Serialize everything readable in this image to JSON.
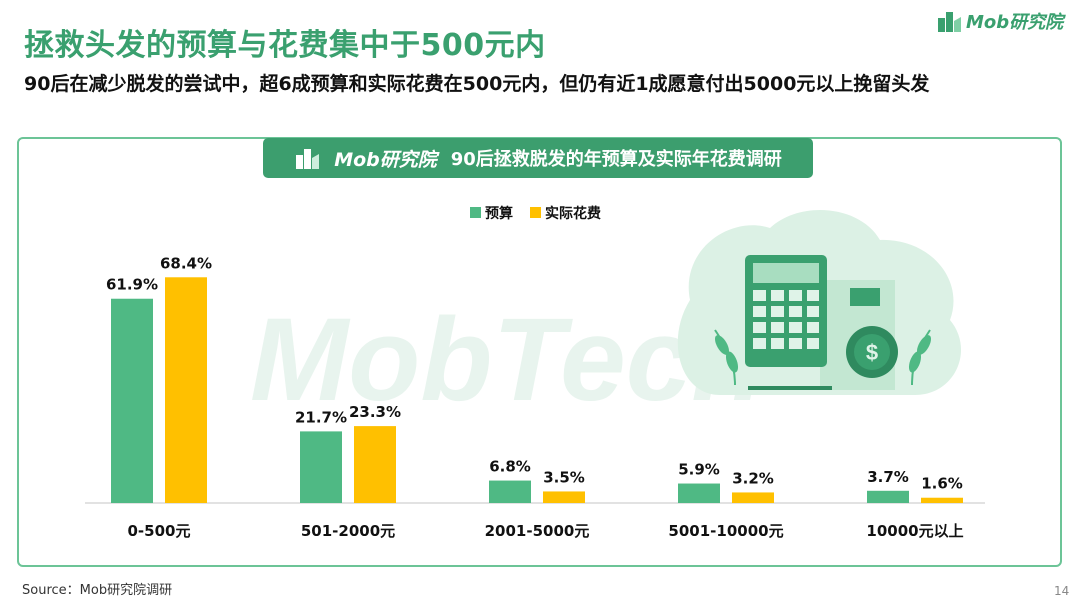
{
  "title": "拯救头发的预算与花费集中于500元内",
  "subtitle": "90后在减少脱发的尝试中，超6成预算和实际花费在500元内，但仍有近1成愿意付出5000元以上挽留头发",
  "logo": {
    "brand": "Mob研究院"
  },
  "banner": {
    "brand": "Mob研究院",
    "title": "90后拯救脱发的年预算及实际年花费调研"
  },
  "source": "Source：Mob研究院调研",
  "page_number": "14",
  "watermark": "MobTech",
  "colors": {
    "budget": "#4fb984",
    "actual": "#ffc000",
    "brand": "#3aa06f"
  },
  "chart_data": {
    "type": "bar",
    "categories": [
      "0-500元",
      "501-2000元",
      "2001-5000元",
      "5001-10000元",
      "10000元以上"
    ],
    "series": [
      {
        "name": "预算",
        "values": [
          61.9,
          21.7,
          6.8,
          5.9,
          3.7
        ],
        "labels": [
          "61.9%",
          "21.7%",
          "6.8%",
          "5.9%",
          "3.7%"
        ]
      },
      {
        "name": "实际花费",
        "values": [
          68.4,
          23.3,
          3.5,
          3.2,
          1.6
        ],
        "labels": [
          "68.4%",
          "23.3%",
          "3.5%",
          "3.2%",
          "1.6%"
        ]
      }
    ],
    "ylim": [
      0,
      100
    ],
    "legend": "top-center",
    "grid": false
  }
}
